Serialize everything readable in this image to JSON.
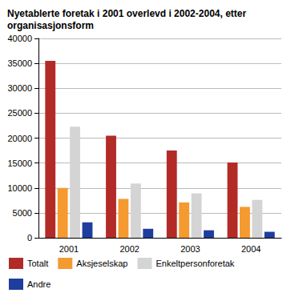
{
  "chart_data": {
    "type": "bar",
    "title": "Nyetablerte foretak i 2001 overlevd i 2002-2004, etter organisasjonsform",
    "categories": [
      "2001",
      "2002",
      "2003",
      "2004"
    ],
    "series": [
      {
        "name": "Totalt",
        "color": "#b22b27",
        "values": [
          35500,
          20500,
          17500,
          15100
        ]
      },
      {
        "name": "Aksjeselskap",
        "color": "#f49a31",
        "values": [
          10000,
          7800,
          7100,
          6200
        ]
      },
      {
        "name": "Enkeltpersonforetak",
        "color": "#d4d4d4",
        "values": [
          22300,
          10900,
          8900,
          7600
        ]
      },
      {
        "name": "Andre",
        "color": "#1f3d9c",
        "values": [
          3100,
          1800,
          1500,
          1200
        ]
      }
    ],
    "ylim": [
      0,
      40000
    ],
    "yticks": [
      0,
      5000,
      10000,
      15000,
      20000,
      25000,
      30000,
      35000,
      40000
    ],
    "grid": true,
    "legend": "bottom"
  }
}
